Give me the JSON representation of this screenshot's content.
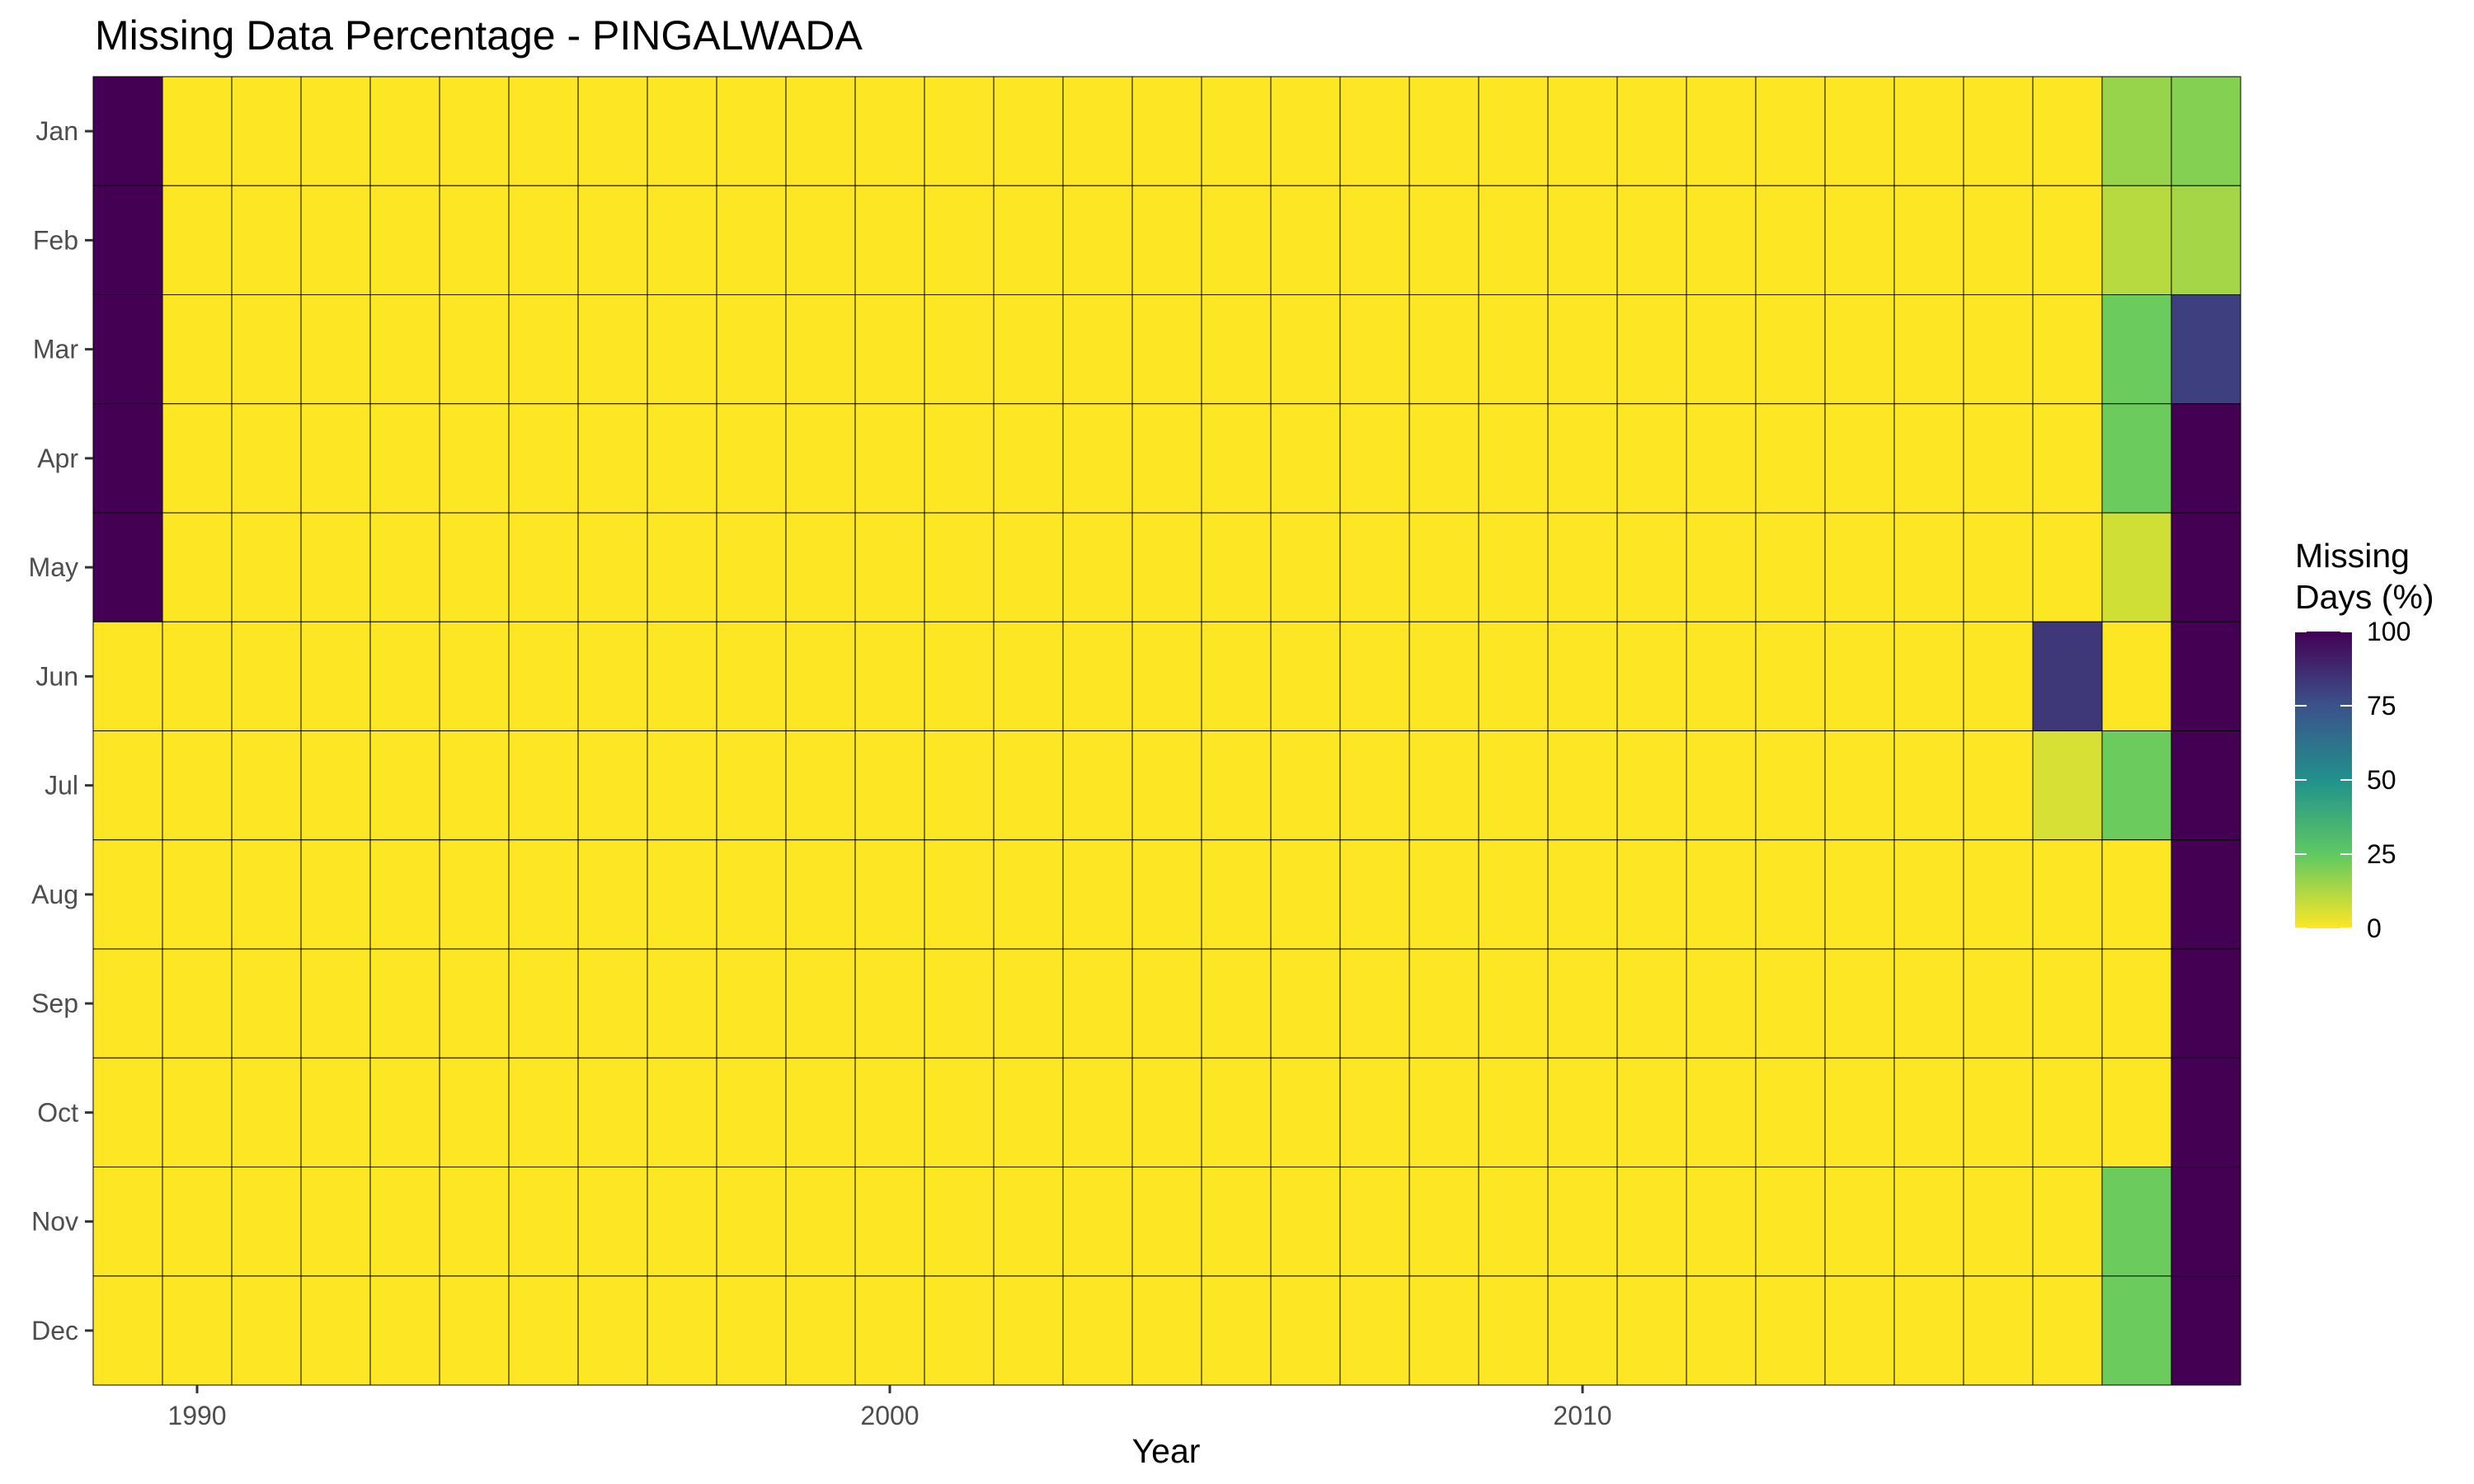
{
  "chart_data": {
    "type": "heatmap",
    "title": "Missing Data Percentage - PINGALWADA",
    "xlabel": "Year",
    "ylabel": "",
    "x_ticks": [
      1990,
      2000,
      2010
    ],
    "x": [
      1989,
      1990,
      1991,
      1992,
      1993,
      1994,
      1995,
      1996,
      1997,
      1998,
      1999,
      2000,
      2001,
      2002,
      2003,
      2004,
      2005,
      2006,
      2007,
      2008,
      2009,
      2010,
      2011,
      2012,
      2013,
      2014,
      2015,
      2016,
      2017,
      2018,
      2019
    ],
    "y": [
      "Jan",
      "Feb",
      "Mar",
      "Apr",
      "May",
      "Jun",
      "Jul",
      "Aug",
      "Sep",
      "Oct",
      "Nov",
      "Dec"
    ],
    "values": [
      [
        100,
        0,
        0,
        0,
        0,
        0,
        0,
        0,
        0,
        0,
        0,
        0,
        0,
        0,
        0,
        0,
        0,
        0,
        0,
        0,
        0,
        0,
        0,
        0,
        0,
        0,
        0,
        0,
        0,
        16,
        19
      ],
      [
        100,
        0,
        0,
        0,
        0,
        0,
        0,
        0,
        0,
        0,
        0,
        0,
        0,
        0,
        0,
        0,
        0,
        0,
        0,
        0,
        0,
        0,
        0,
        0,
        0,
        0,
        0,
        0,
        0,
        11,
        14
      ],
      [
        100,
        0,
        0,
        0,
        0,
        0,
        0,
        0,
        0,
        0,
        0,
        0,
        0,
        0,
        0,
        0,
        0,
        0,
        0,
        0,
        0,
        0,
        0,
        0,
        0,
        0,
        0,
        0,
        0,
        23,
        81
      ],
      [
        100,
        0,
        0,
        0,
        0,
        0,
        0,
        0,
        0,
        0,
        0,
        0,
        0,
        0,
        0,
        0,
        0,
        0,
        0,
        0,
        0,
        0,
        0,
        0,
        0,
        0,
        0,
        0,
        0,
        23,
        100
      ],
      [
        100,
        0,
        0,
        0,
        0,
        0,
        0,
        0,
        0,
        0,
        0,
        0,
        0,
        0,
        0,
        0,
        0,
        0,
        0,
        0,
        0,
        0,
        0,
        0,
        0,
        0,
        0,
        0,
        0,
        7,
        100
      ],
      [
        0,
        0,
        0,
        0,
        0,
        0,
        0,
        0,
        0,
        0,
        0,
        0,
        0,
        0,
        0,
        0,
        0,
        0,
        0,
        0,
        0,
        0,
        0,
        0,
        0,
        0,
        0,
        0,
        83,
        0,
        100
      ],
      [
        0,
        0,
        0,
        0,
        0,
        0,
        0,
        0,
        0,
        0,
        0,
        0,
        0,
        0,
        0,
        0,
        0,
        0,
        0,
        0,
        0,
        0,
        0,
        0,
        0,
        0,
        0,
        0,
        6,
        23,
        100
      ],
      [
        0,
        0,
        0,
        0,
        0,
        0,
        0,
        0,
        0,
        0,
        0,
        0,
        0,
        0,
        0,
        0,
        0,
        0,
        0,
        0,
        0,
        0,
        0,
        0,
        0,
        0,
        0,
        0,
        0,
        0,
        100
      ],
      [
        0,
        0,
        0,
        0,
        0,
        0,
        0,
        0,
        0,
        0,
        0,
        0,
        0,
        0,
        0,
        0,
        0,
        0,
        0,
        0,
        0,
        0,
        0,
        0,
        0,
        0,
        0,
        0,
        0,
        0,
        100
      ],
      [
        0,
        0,
        0,
        0,
        0,
        0,
        0,
        0,
        0,
        0,
        0,
        0,
        0,
        0,
        0,
        0,
        0,
        0,
        0,
        0,
        0,
        0,
        0,
        0,
        0,
        0,
        0,
        0,
        0,
        0,
        100
      ],
      [
        0,
        0,
        0,
        0,
        0,
        0,
        0,
        0,
        0,
        0,
        0,
        0,
        0,
        0,
        0,
        0,
        0,
        0,
        0,
        0,
        0,
        0,
        0,
        0,
        0,
        0,
        0,
        0,
        0,
        23,
        100
      ],
      [
        0,
        0,
        0,
        0,
        0,
        0,
        0,
        0,
        0,
        0,
        0,
        0,
        0,
        0,
        0,
        0,
        0,
        0,
        0,
        0,
        0,
        0,
        0,
        0,
        0,
        0,
        0,
        0,
        0,
        23,
        100
      ]
    ],
    "color_scale": {
      "name": "viridis",
      "direction": "reversed",
      "range": [
        0,
        100
      ],
      "stops": [
        "#fde725",
        "#5ec962",
        "#21918c",
        "#3b528b",
        "#440154"
      ]
    },
    "legend": {
      "title_lines": [
        "Missing",
        "Days (%)"
      ],
      "ticks": [
        0,
        25,
        50,
        75,
        100
      ],
      "position": "right"
    },
    "cell_border_color": "#000000",
    "grid": false
  }
}
